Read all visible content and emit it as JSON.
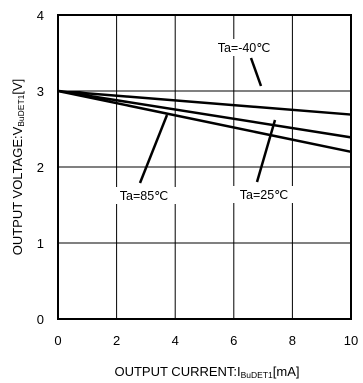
{
  "chart_data": {
    "type": "line",
    "title": "",
    "xlabel": {
      "main": "OUTPUT CURRENT:I",
      "sub": "BuDET1",
      "unit": "[mA]"
    },
    "ylabel": {
      "main": "OUTPUT VOLTAGE:V",
      "sub": "BuDET1",
      "unit": "[V]"
    },
    "xlim": [
      0,
      10
    ],
    "ylim": [
      0,
      4
    ],
    "xticks": [
      "0",
      "2",
      "4",
      "6",
      "8",
      "10"
    ],
    "yticks": [
      "0",
      "1",
      "2",
      "3",
      "4"
    ],
    "grid": true,
    "legend": "none",
    "series": [
      {
        "name": "Ta=-40℃",
        "x": [
          0,
          10
        ],
        "y": [
          3.0,
          2.69
        ]
      },
      {
        "name": "Ta=25℃",
        "x": [
          0,
          10
        ],
        "y": [
          3.0,
          2.39
        ]
      },
      {
        "name": "Ta=85℃",
        "x": [
          0,
          10
        ],
        "y": [
          3.0,
          2.2
        ]
      }
    ],
    "annotations": [
      {
        "text": "Ta=-40℃",
        "series": "Ta=-40℃"
      },
      {
        "text": "Ta=25℃",
        "series": "Ta=25℃"
      },
      {
        "text": "Ta=85℃",
        "series": "Ta=85℃"
      }
    ]
  }
}
